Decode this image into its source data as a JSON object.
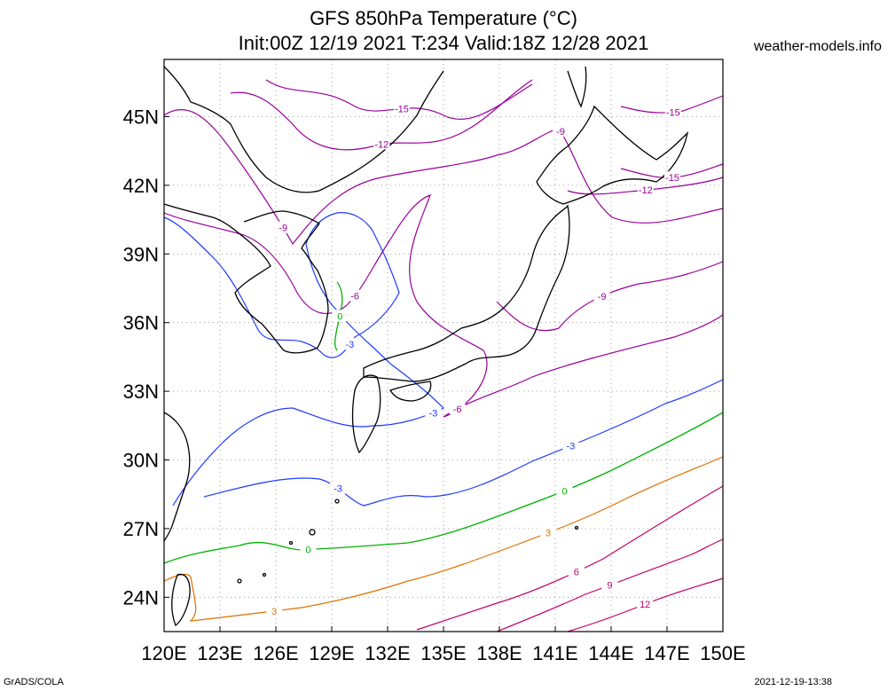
{
  "title": {
    "line1": "GFS 850hPa Temperature (°C)",
    "line2": "Init:00Z 12/19 2021 T:234 Valid:18Z 12/28 2021"
  },
  "site_label": "weather-models.info",
  "footer": {
    "left": "GrADS/COLA",
    "right": "2021-12-19-13:38"
  },
  "map": {
    "lon_range": [
      120,
      150
    ],
    "lat_range": [
      22.5,
      47.5
    ],
    "lon_ticks": [
      "120E",
      "123E",
      "126E",
      "129E",
      "132E",
      "135E",
      "138E",
      "141E",
      "144E",
      "147E",
      "150E"
    ],
    "lat_ticks": [
      "24N",
      "27N",
      "30N",
      "33N",
      "36N",
      "39N",
      "42N",
      "45N"
    ],
    "grid": "dotted",
    "contour_colors": {
      "-15": "#9a009a",
      "-12": "#9a009a",
      "-9": "#9a009a",
      "-6": "#9a009a",
      "-3": "#1e3cff",
      "0": "#00b400",
      "3": "#e07000",
      "6": "#c0006a",
      "9": "#c0006a",
      "12": "#c0006a"
    },
    "contour_labels": [
      "-15",
      "-12",
      "-9",
      "-6",
      "-3",
      "0",
      "3",
      "6",
      "9",
      "12"
    ]
  }
}
